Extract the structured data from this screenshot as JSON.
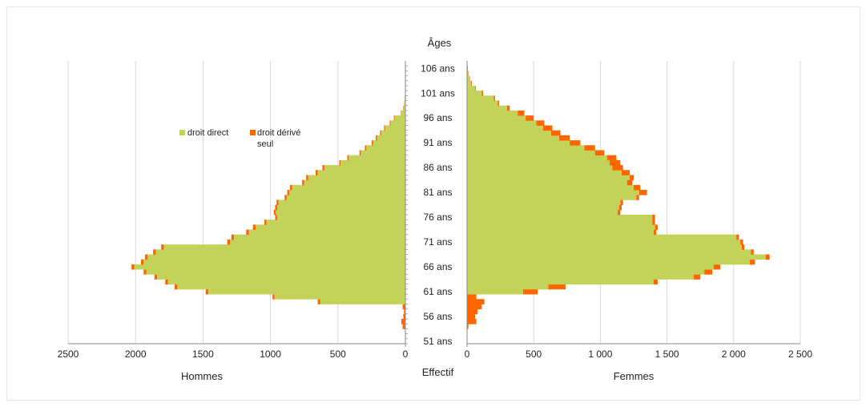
{
  "chart_data": {
    "type": "bar",
    "orientation": "horizontal-pyramid",
    "title": "Âges",
    "x_axis_title_center": "Effectif",
    "left_label": "Hommes",
    "right_label": "Femmes",
    "legend": [
      {
        "name": "droit direct",
        "color": "#c3d35a"
      },
      {
        "name": "droit dérivé seul",
        "color": "#ff6600",
        "text_line1": "droit dérivé",
        "text_line2": "seul"
      }
    ],
    "legend_placement": "upper-left",
    "grid": "vertical",
    "xlim_left": [
      0,
      2500
    ],
    "xlim_right": [
      0,
      2500
    ],
    "left_ticks": [
      "2500",
      "2000",
      "1500",
      "1000",
      "500",
      "0"
    ],
    "right_ticks": [
      "0",
      "500",
      "1 000",
      "1 500",
      "2 000",
      "2 500"
    ],
    "age_labels": [
      "51 ans",
      "56 ans",
      "61 ans",
      "66 ans",
      "71 ans",
      "76 ans",
      "81 ans",
      "86 ans",
      "91 ans",
      "96 ans",
      "101 ans",
      "106 ans"
    ],
    "ages": [
      51,
      52,
      53,
      54,
      55,
      56,
      57,
      58,
      59,
      60,
      61,
      62,
      63,
      64,
      65,
      66,
      67,
      68,
      69,
      70,
      71,
      72,
      73,
      74,
      75,
      76,
      77,
      78,
      79,
      80,
      81,
      82,
      83,
      84,
      85,
      86,
      87,
      88,
      89,
      90,
      91,
      92,
      93,
      94,
      95,
      96,
      97,
      98,
      99,
      100,
      101,
      102,
      103,
      104,
      105,
      106,
      107
    ],
    "hommes_droit_direct": [
      0,
      0,
      0,
      0,
      0,
      0,
      0,
      0,
      630,
      970,
      1460,
      1690,
      1760,
      1840,
      1920,
      2010,
      1940,
      1910,
      1850,
      1790,
      1300,
      1270,
      1160,
      1110,
      1030,
      950,
      960,
      950,
      940,
      880,
      860,
      840,
      750,
      720,
      650,
      600,
      480,
      420,
      330,
      290,
      240,
      210,
      180,
      150,
      110,
      80,
      30,
      15,
      8,
      4,
      2,
      1,
      1,
      0,
      0,
      0,
      0
    ],
    "hommes_droit_derive": [
      0,
      0,
      0,
      20,
      30,
      15,
      10,
      20,
      20,
      15,
      20,
      20,
      20,
      20,
      20,
      20,
      20,
      20,
      20,
      20,
      20,
      20,
      20,
      20,
      15,
      15,
      15,
      15,
      15,
      15,
      15,
      15,
      15,
      15,
      15,
      15,
      10,
      10,
      10,
      10,
      10,
      10,
      8,
      8,
      6,
      5,
      3,
      2,
      1,
      1,
      0,
      0,
      0,
      0,
      0,
      0,
      0
    ],
    "femmes_droit_direct": [
      0,
      0,
      0,
      0,
      0,
      0,
      0,
      0,
      0,
      0,
      420,
      610,
      1400,
      1700,
      1780,
      1850,
      2120,
      2240,
      2130,
      2060,
      2050,
      2020,
      1400,
      1410,
      1390,
      1390,
      1130,
      1140,
      1150,
      1270,
      1290,
      1250,
      1200,
      1220,
      1160,
      1090,
      1070,
      1050,
      960,
      880,
      770,
      690,
      630,
      570,
      520,
      440,
      380,
      300,
      230,
      200,
      110,
      60,
      30,
      18,
      10,
      4,
      2
    ],
    "femmes_droit_derive": [
      0,
      0,
      0,
      10,
      70,
      60,
      80,
      110,
      130,
      70,
      110,
      130,
      30,
      50,
      60,
      50,
      40,
      30,
      20,
      20,
      20,
      20,
      20,
      20,
      20,
      20,
      20,
      20,
      20,
      20,
      60,
      50,
      40,
      30,
      60,
      80,
      80,
      70,
      70,
      80,
      80,
      80,
      70,
      70,
      60,
      60,
      50,
      20,
      10,
      10,
      10,
      5,
      5,
      3,
      2,
      2,
      1
    ]
  }
}
